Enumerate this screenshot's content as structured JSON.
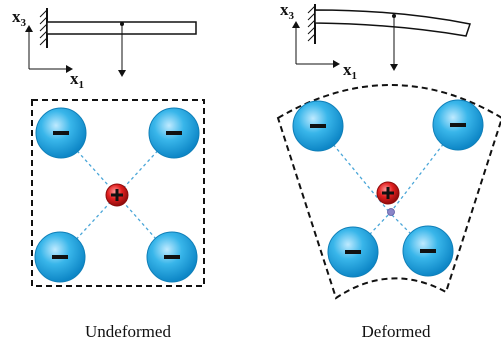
{
  "labels": {
    "axis_x1": "x",
    "axis_x1_sub": "1",
    "axis_x3": "x",
    "axis_x3_sub": "3"
  },
  "charges": {
    "cation_sign": "+",
    "anion_sign": "−"
  },
  "captions": {
    "undeformed": "Undeformed",
    "deformed": "Deformed"
  },
  "colors": {
    "anion_fill": "#39b6ea",
    "anion_edge": "#0f7fb8",
    "cation_fill": "#e21f1f",
    "cation_edge": "#8e0c0c",
    "bond_line": "#4aa6d8",
    "displaced_center": "#8a86c8",
    "box_line": "#111111"
  }
}
